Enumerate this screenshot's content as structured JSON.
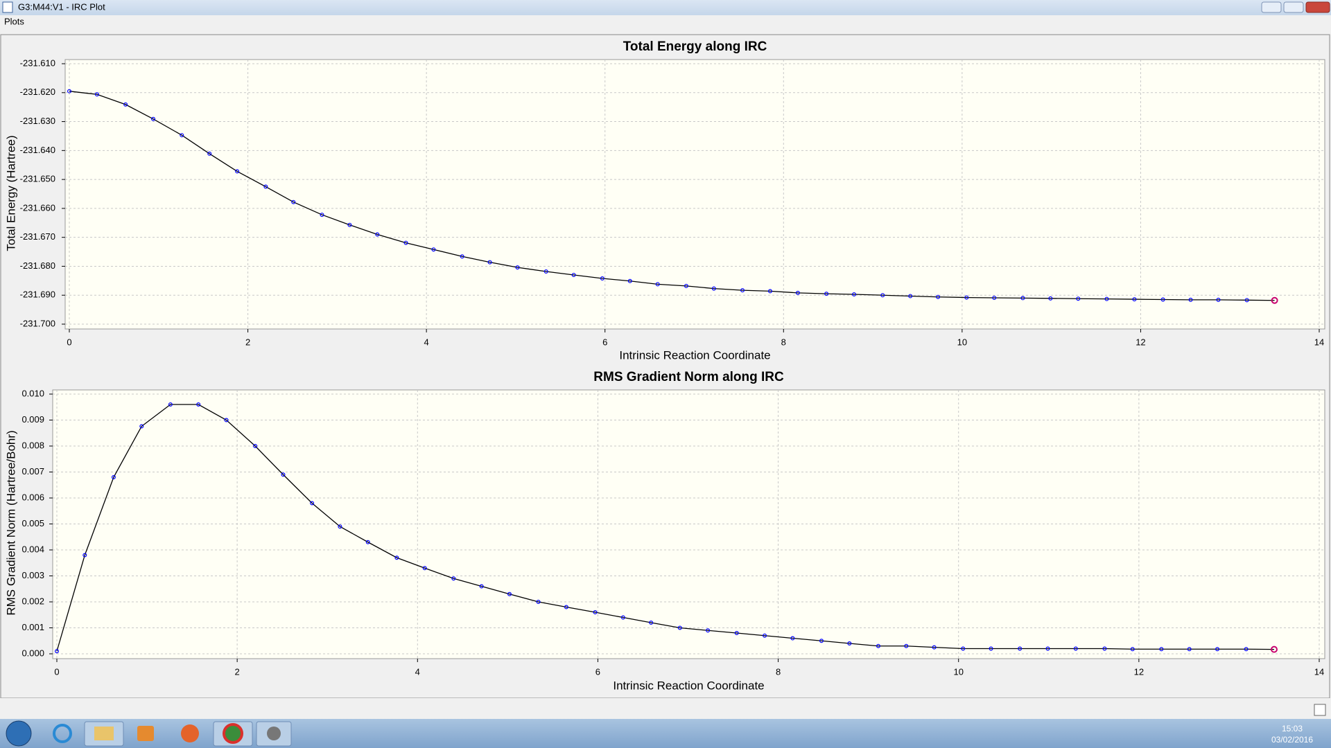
{
  "window": {
    "title": "G3:M44:V1 - IRC Plot",
    "menu": [
      "Plots"
    ],
    "clock": {
      "time": "15:03",
      "date": "03/02/2016"
    }
  },
  "chart_data": [
    {
      "type": "line",
      "title": "Total Energy along IRC",
      "x_label": "Intrinsic Reaction Coordinate",
      "y_label": "Total Energy (Hartree)",
      "x": [
        0,
        0.31,
        0.63,
        0.94,
        1.26,
        1.57,
        1.88,
        2.2,
        2.51,
        2.83,
        3.14,
        3.45,
        3.77,
        4.08,
        4.4,
        4.71,
        5.02,
        5.34,
        5.65,
        5.97,
        6.28,
        6.59,
        6.91,
        7.22,
        7.54,
        7.85,
        8.16,
        8.48,
        8.79,
        9.11,
        9.42,
        9.73,
        10.05,
        10.36,
        10.68,
        10.99,
        11.3,
        11.62,
        11.93,
        12.25,
        12.56,
        12.87,
        13.19,
        13.5
      ],
      "values": [
        -231.6195,
        -231.6206,
        -231.6241,
        -231.6291,
        -231.6347,
        -231.6411,
        -231.6472,
        -231.6525,
        -231.6578,
        -231.6622,
        -231.6657,
        -231.669,
        -231.6719,
        -231.6742,
        -231.6766,
        -231.6786,
        -231.6804,
        -231.6818,
        -231.683,
        -231.6842,
        -231.6851,
        -231.6862,
        -231.6868,
        -231.6877,
        -231.6883,
        -231.6886,
        -231.6892,
        -231.6895,
        -231.6897,
        -231.69,
        -231.6903,
        -231.6906,
        -231.6908,
        -231.6909,
        -231.691,
        -231.6911,
        -231.6912,
        -231.6913,
        -231.6914,
        -231.6915,
        -231.6916,
        -231.6916,
        -231.6917,
        -231.6918
      ],
      "color": "#000000",
      "marker_color": "#0000ff",
      "highlight_color": "#c8006e",
      "grid": true,
      "xlim": [
        0,
        14
      ],
      "xticks": [
        0,
        2,
        4,
        6,
        8,
        10,
        12,
        14
      ],
      "ylim": [
        -231.7,
        -231.61
      ],
      "yticks": [
        {
          "value": -231.61,
          "label": "-231.610"
        },
        {
          "value": -231.62,
          "label": "-231.620"
        },
        {
          "value": -231.63,
          "label": "-231.630"
        },
        {
          "value": -231.64,
          "label": "-231.640"
        },
        {
          "value": -231.65,
          "label": "-231.650"
        },
        {
          "value": -231.66,
          "label": "-231.660"
        },
        {
          "value": -231.67,
          "label": "-231.670"
        },
        {
          "value": -231.68,
          "label": "-231.680"
        },
        {
          "value": -231.69,
          "label": "-231.690"
        },
        {
          "value": -231.7,
          "label": "-231.700"
        }
      ]
    },
    {
      "type": "line",
      "title": "RMS Gradient Norm along IRC",
      "x_label": "Intrinsic Reaction Coordinate",
      "y_label": "RMS Gradient Norm (Hartree/Bohr)",
      "x": [
        0,
        0.31,
        0.63,
        0.94,
        1.26,
        1.57,
        1.88,
        2.2,
        2.51,
        2.83,
        3.14,
        3.45,
        3.77,
        4.08,
        4.4,
        4.71,
        5.02,
        5.34,
        5.65,
        5.97,
        6.28,
        6.59,
        6.91,
        7.22,
        7.54,
        7.85,
        8.16,
        8.48,
        8.79,
        9.11,
        9.42,
        9.73,
        10.05,
        10.36,
        10.68,
        10.99,
        11.3,
        11.62,
        11.93,
        12.25,
        12.56,
        12.87,
        13.19,
        13.5
      ],
      "values": [
        0.0001,
        0.0038,
        0.0068,
        0.00876,
        0.0096,
        0.0096,
        0.009,
        0.008,
        0.0069,
        0.0058,
        0.0049,
        0.0043,
        0.0037,
        0.0033,
        0.0029,
        0.0026,
        0.0023,
        0.002,
        0.0018,
        0.0016,
        0.0014,
        0.0012,
        0.001,
        0.0009,
        0.0008,
        0.0007,
        0.0006,
        0.0005,
        0.0004,
        0.0003,
        0.0003,
        0.00025,
        0.0002,
        0.0002,
        0.0002,
        0.0002,
        0.0002,
        0.0002,
        0.00018,
        0.00018,
        0.00018,
        0.00018,
        0.00018,
        0.00017
      ],
      "color": "#000000",
      "marker_color": "#0000ff",
      "highlight_color": "#c8006e",
      "grid": true,
      "xlim": [
        0,
        14
      ],
      "xticks": [
        0,
        2,
        4,
        6,
        8,
        10,
        12,
        14
      ],
      "ylim": [
        0,
        0.01
      ],
      "yticks": [
        {
          "value": 0,
          "label": "0.000"
        },
        {
          "value": 0.001,
          "label": "0.001"
        },
        {
          "value": 0.002,
          "label": "0.002"
        },
        {
          "value": 0.003,
          "label": "0.003"
        },
        {
          "value": 0.004,
          "label": "0.004"
        },
        {
          "value": 0.005,
          "label": "0.005"
        },
        {
          "value": 0.006,
          "label": "0.006"
        },
        {
          "value": 0.007,
          "label": "0.007"
        },
        {
          "value": 0.008,
          "label": "0.008"
        },
        {
          "value": 0.009,
          "label": "0.009"
        },
        {
          "value": 0.01,
          "label": "0.010"
        }
      ]
    }
  ]
}
